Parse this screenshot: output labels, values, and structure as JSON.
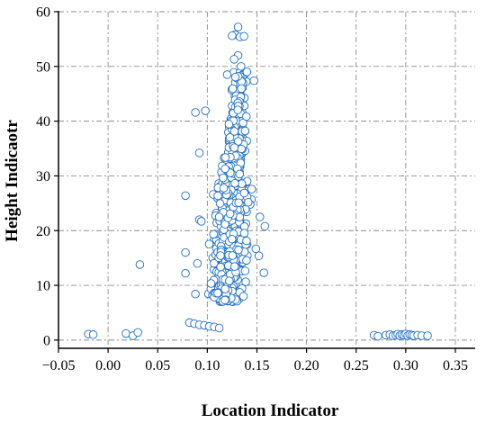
{
  "chart_data": {
    "type": "scatter",
    "title": "",
    "xlabel": "Location Indicator",
    "ylabel": "Height Indicaotr",
    "xlim": [
      -0.05,
      0.37
    ],
    "ylim": [
      -1.5,
      60
    ],
    "x_ticks": [
      "−0.05",
      "0.00",
      "0.05",
      "0.10",
      "0.15",
      "0.20",
      "0.25",
      "0.30",
      "0.35"
    ],
    "x_tick_values": [
      -0.05,
      0.0,
      0.05,
      0.1,
      0.15,
      0.2,
      0.25,
      0.3,
      0.35
    ],
    "y_ticks": [
      "0",
      "10",
      "20",
      "30",
      "40",
      "50",
      "60"
    ],
    "y_tick_values": [
      0,
      10,
      20,
      30,
      40,
      50,
      60
    ],
    "grid": true,
    "marker_color": "#1f6fc5",
    "marker_fill": "#ffffff",
    "series": [
      {
        "points": [
          [
            -0.02,
            1.1
          ],
          [
            -0.015,
            1.0
          ],
          [
            0.018,
            1.2
          ],
          [
            0.025,
            0.8
          ],
          [
            0.03,
            1.4
          ],
          [
            0.032,
            13.8
          ],
          [
            0.078,
            26.4
          ],
          [
            0.078,
            16.0
          ],
          [
            0.078,
            12.2
          ],
          [
            0.088,
            41.6
          ],
          [
            0.098,
            41.9
          ],
          [
            0.092,
            34.2
          ],
          [
            0.092,
            22.0
          ],
          [
            0.09,
            14.0
          ],
          [
            0.088,
            8.4
          ],
          [
            0.094,
            21.7
          ],
          [
            0.082,
            3.2
          ],
          [
            0.087,
            3.0
          ],
          [
            0.092,
            2.8
          ],
          [
            0.097,
            2.7
          ],
          [
            0.102,
            2.5
          ],
          [
            0.107,
            2.4
          ],
          [
            0.112,
            2.2
          ],
          [
            0.158,
            20.8
          ],
          [
            0.157,
            12.3
          ],
          [
            0.153,
            22.5
          ],
          [
            0.152,
            15.4
          ],
          [
            0.131,
            57.2
          ],
          [
            0.128,
            55.8
          ],
          [
            0.133,
            55.4
          ],
          [
            0.125,
            55.6
          ],
          [
            0.137,
            55.5
          ],
          [
            0.131,
            52.0
          ],
          [
            0.127,
            51.3
          ],
          [
            0.134,
            50.0
          ],
          [
            0.12,
            48.5
          ],
          [
            0.14,
            49.0
          ],
          [
            0.147,
            47.4
          ],
          [
            0.268,
            0.9
          ],
          [
            0.272,
            0.7
          ],
          [
            0.28,
            0.9
          ],
          [
            0.284,
            1.0
          ],
          [
            0.287,
            0.8
          ],
          [
            0.29,
            0.9
          ],
          [
            0.292,
            1.1
          ],
          [
            0.294,
            0.8
          ],
          [
            0.296,
            1.0
          ],
          [
            0.298,
            0.9
          ],
          [
            0.3,
            1.1
          ],
          [
            0.302,
            0.8
          ],
          [
            0.304,
            1.0
          ],
          [
            0.306,
            0.9
          ],
          [
            0.308,
            0.8
          ],
          [
            0.312,
            0.9
          ],
          [
            0.316,
            0.8
          ],
          [
            0.322,
            0.8
          ]
        ]
      }
    ]
  }
}
